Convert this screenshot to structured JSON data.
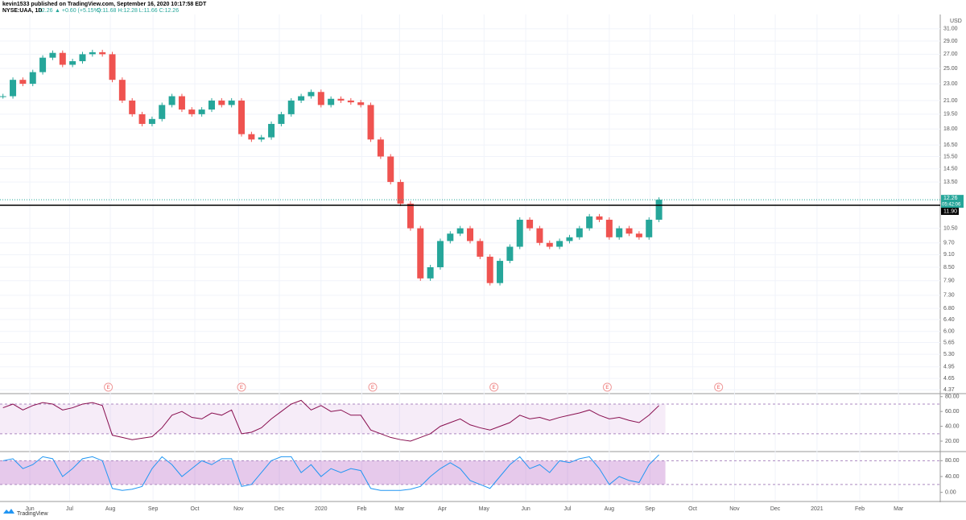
{
  "header": {
    "publisher": "kevin1533 published on TradingView.com, September 16, 2020 10:17:58 EDT",
    "symbol": "NYSE:UAA, 1D",
    "last": "12.26",
    "change": "▲ +0.60 (+5.15%)",
    "ohlc": "O:11.68 H:12.28 L:11.66 C:12.26"
  },
  "footer": {
    "brand": "TradingView"
  },
  "chart_data": [
    {
      "type": "candlestick",
      "currency": "USD",
      "log": true,
      "up_color": "#26a69a",
      "down_color": "#ef5350",
      "xlim": [
        -0.3,
        94.3
      ],
      "xticks": [
        {
          "value": 2.7,
          "label": "Jun"
        },
        {
          "value": 6.7,
          "label": "Jul"
        },
        {
          "value": 10.8,
          "label": "Aug"
        },
        {
          "value": 15.1,
          "label": "Sep"
        },
        {
          "value": 19.3,
          "label": "Oct"
        },
        {
          "value": 23.7,
          "label": "Nov"
        },
        {
          "value": 27.8,
          "label": "Dec"
        },
        {
          "value": 32.0,
          "label": "2020"
        },
        {
          "value": 36.1,
          "label": "Feb"
        },
        {
          "value": 39.9,
          "label": "Mar"
        },
        {
          "value": 44.2,
          "label": "Apr"
        },
        {
          "value": 48.4,
          "label": "May"
        },
        {
          "value": 52.6,
          "label": "Jun"
        },
        {
          "value": 56.8,
          "label": "Jul"
        },
        {
          "value": 61.0,
          "label": "Aug"
        },
        {
          "value": 65.1,
          "label": "Sep"
        },
        {
          "value": 69.4,
          "label": "Oct"
        },
        {
          "value": 73.6,
          "label": "Nov"
        },
        {
          "value": 77.7,
          "label": "Dec"
        },
        {
          "value": 81.9,
          "label": "2021"
        },
        {
          "value": 86.2,
          "label": "Feb"
        },
        {
          "value": 90.1,
          "label": "Mar"
        }
      ],
      "ylim": [
        4.3,
        33.5
      ],
      "yticks": [
        {
          "value": 31,
          "label": "31.00"
        },
        {
          "value": 29,
          "label": "29.00"
        },
        {
          "value": 27,
          "label": "27.00"
        },
        {
          "value": 25,
          "label": "25.00"
        },
        {
          "value": 23,
          "label": "23.00"
        },
        {
          "value": 21,
          "label": "21.00"
        },
        {
          "value": 19.5,
          "label": "19.50"
        },
        {
          "value": 18,
          "label": "18.00"
        },
        {
          "value": 16.5,
          "label": "16.50"
        },
        {
          "value": 15.5,
          "label": "15.50"
        },
        {
          "value": 14.5,
          "label": "14.50"
        },
        {
          "value": 13.5,
          "label": "13.50"
        },
        {
          "value": 10.5,
          "label": "10.50"
        },
        {
          "value": 9.7,
          "label": "9.70"
        },
        {
          "value": 9.1,
          "label": "9.10"
        },
        {
          "value": 8.5,
          "label": "8.50"
        },
        {
          "value": 7.9,
          "label": "7.90"
        },
        {
          "value": 7.3,
          "label": "7.30"
        },
        {
          "value": 6.8,
          "label": "6.80"
        },
        {
          "value": 6.4,
          "label": "6.40"
        },
        {
          "value": 6,
          "label": "6.00"
        },
        {
          "value": 5.65,
          "label": "5.65"
        },
        {
          "value": 5.3,
          "label": "5.30"
        },
        {
          "value": 4.95,
          "label": "4.95"
        },
        {
          "value": 4.65,
          "label": "4.65"
        },
        {
          "value": 4.37,
          "label": "4.37"
        }
      ],
      "values": [
        21.5,
        23.5,
        23.0,
        24.5,
        26.5,
        27.2,
        25.5,
        26.0,
        27.0,
        27.3,
        27.0,
        23.5,
        21.0,
        19.5,
        18.5,
        19.0,
        20.5,
        21.5,
        20.0,
        19.5,
        20.0,
        21.0,
        20.5,
        21.0,
        17.5,
        17.0,
        17.2,
        18.5,
        19.5,
        21.0,
        21.5,
        22.0,
        20.5,
        21.2,
        21.0,
        20.8,
        20.5,
        17.0,
        15.5,
        13.5,
        12.0,
        10.5,
        8.0,
        8.5,
        9.8,
        10.2,
        10.5,
        9.8,
        9.0,
        7.8,
        8.8,
        9.5,
        11.0,
        10.5,
        9.7,
        9.5,
        9.8,
        10.0,
        10.5,
        11.2,
        11.0,
        10.0,
        10.5,
        10.2,
        10.0,
        11.0,
        12.26
      ],
      "hline": {
        "value": 11.9,
        "label": "11.90"
      },
      "last_price": {
        "value": 12.26,
        "countdown": "05:42:06"
      },
      "events": [
        {
          "x": 10.6,
          "label": "E"
        },
        {
          "x": 24.0,
          "label": "E"
        },
        {
          "x": 37.2,
          "label": "E"
        },
        {
          "x": 49.4,
          "label": "E"
        },
        {
          "x": 60.8,
          "label": "E"
        },
        {
          "x": 72.0,
          "label": "E"
        }
      ]
    },
    {
      "type": "line",
      "color": "#880e4f",
      "band": [
        30,
        70
      ],
      "ylim": [
        7,
        83
      ],
      "yticks": [
        {
          "value": 80,
          "label": "80.00"
        },
        {
          "value": 60,
          "label": "60.00"
        },
        {
          "value": 40,
          "label": "40.00"
        },
        {
          "value": 20,
          "label": "20.00"
        }
      ],
      "values": [
        65,
        70,
        62,
        68,
        72,
        70,
        62,
        65,
        70,
        72,
        68,
        28,
        25,
        22,
        24,
        26,
        38,
        55,
        60,
        52,
        50,
        58,
        55,
        62,
        30,
        32,
        38,
        50,
        60,
        70,
        75,
        62,
        68,
        60,
        62,
        55,
        55,
        35,
        30,
        25,
        22,
        20,
        25,
        30,
        40,
        45,
        50,
        42,
        38,
        35,
        40,
        45,
        55,
        50,
        52,
        48,
        52,
        55,
        58,
        62,
        55,
        50,
        52,
        48,
        45,
        55,
        68
      ]
    },
    {
      "type": "line",
      "color": "#2196f3",
      "band": [
        20,
        80
      ],
      "ylim": [
        -21,
        101
      ],
      "yticks": [
        {
          "value": 80,
          "label": "80.00"
        },
        {
          "value": 40,
          "label": "40.00"
        },
        {
          "value": 0,
          "label": "0.00"
        }
      ],
      "values": [
        80,
        85,
        60,
        70,
        90,
        85,
        40,
        60,
        85,
        90,
        80,
        10,
        5,
        8,
        15,
        60,
        90,
        70,
        40,
        60,
        80,
        70,
        85,
        85,
        15,
        20,
        50,
        80,
        90,
        90,
        50,
        70,
        40,
        60,
        50,
        60,
        55,
        10,
        5,
        5,
        5,
        8,
        15,
        40,
        60,
        75,
        60,
        30,
        20,
        10,
        40,
        70,
        90,
        60,
        70,
        50,
        80,
        75,
        85,
        90,
        60,
        20,
        40,
        30,
        25,
        70,
        95
      ]
    }
  ]
}
